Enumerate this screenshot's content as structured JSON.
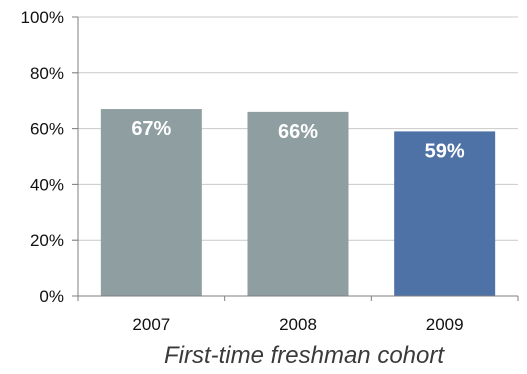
{
  "chart_data": {
    "type": "bar",
    "title": "",
    "xlabel": "First-time freshman cohort",
    "ylabel": "",
    "categories": [
      "2007",
      "2008",
      "2009"
    ],
    "values": [
      67,
      66,
      59
    ],
    "data_labels": [
      "67%",
      "66%",
      "59%"
    ],
    "bar_colors": [
      "#8f9ea1",
      "#8f9ea1",
      "#4f72a6"
    ],
    "ylim": [
      0,
      100
    ],
    "yticks": [
      0,
      20,
      40,
      60,
      80,
      100
    ],
    "ytick_labels": [
      "0%",
      "20%",
      "40%",
      "60%",
      "80%",
      "100%"
    ],
    "grid": true,
    "legend": "none"
  }
}
